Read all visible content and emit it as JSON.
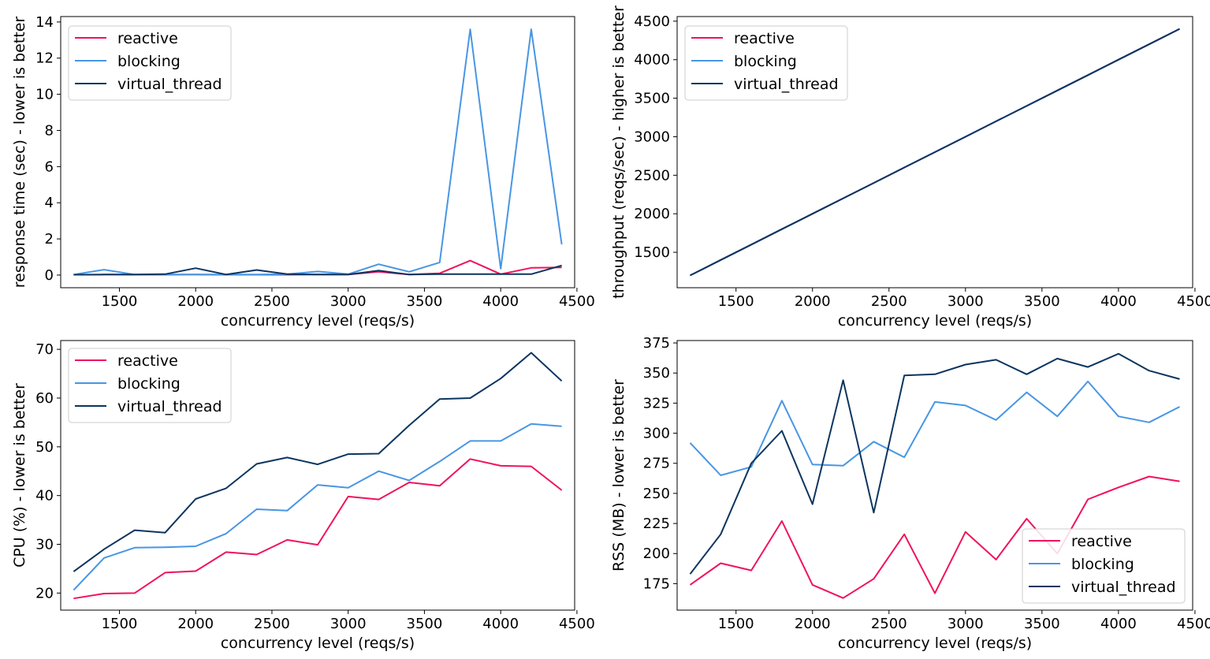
{
  "colors": {
    "reactive": "#f0135a",
    "blocking": "#4896e4",
    "virtual_thread": "#0b3560"
  },
  "chart_data": [
    {
      "type": "line",
      "xlabel": "concurrency level (reqs/s)",
      "ylabel": "response time (sec) - lower is better",
      "xlim": [
        1115,
        4485
      ],
      "ylim": [
        -0.7,
        14.3
      ],
      "xticks": [
        1500,
        2000,
        2500,
        3000,
        3500,
        4000,
        4500
      ],
      "yticks": [
        0,
        2,
        4,
        6,
        8,
        10,
        12,
        14
      ],
      "legend": "upper-left",
      "x": [
        1200,
        1400,
        1600,
        1800,
        2000,
        2200,
        2400,
        2600,
        2800,
        3000,
        3200,
        3400,
        3600,
        3800,
        4000,
        4200,
        4400
      ],
      "series": [
        {
          "name": "reactive",
          "color": "#f0135a",
          "values": [
            0.02,
            0.03,
            0.02,
            0.02,
            0.03,
            0.02,
            0.02,
            0.02,
            0.03,
            0.03,
            0.18,
            0.03,
            0.1,
            0.8,
            0.05,
            0.4,
            0.42
          ]
        },
        {
          "name": "blocking",
          "color": "#4896e4",
          "values": [
            0.03,
            0.3,
            0.03,
            0.03,
            0.03,
            0.03,
            0.03,
            0.05,
            0.2,
            0.05,
            0.6,
            0.18,
            0.7,
            13.6,
            0.35,
            13.6,
            1.7
          ]
        },
        {
          "name": "virtual_thread",
          "color": "#0b3560",
          "values": [
            0.02,
            0.03,
            0.03,
            0.05,
            0.38,
            0.03,
            0.28,
            0.05,
            0.03,
            0.03,
            0.25,
            0.03,
            0.05,
            0.05,
            0.05,
            0.05,
            0.53
          ]
        }
      ]
    },
    {
      "type": "line",
      "xlabel": "concurrency level (reqs/s)",
      "ylabel": "throughput (reqs/sec) - higher is better",
      "xlim": [
        1115,
        4485
      ],
      "ylim": [
        1040,
        4560
      ],
      "xticks": [
        1500,
        2000,
        2500,
        3000,
        3500,
        4000,
        4500
      ],
      "yticks": [
        1500,
        2000,
        2500,
        3000,
        3500,
        4000,
        4500
      ],
      "legend": "upper-left",
      "x": [
        1200,
        1400,
        1600,
        1800,
        2000,
        2200,
        2400,
        2600,
        2800,
        3000,
        3200,
        3400,
        3600,
        3800,
        4000,
        4200,
        4400
      ],
      "series": [
        {
          "name": "reactive",
          "color": "#f0135a",
          "values": [
            1200,
            1400,
            1600,
            1800,
            2000,
            2200,
            2400,
            2600,
            2800,
            3000,
            3200,
            3400,
            3600,
            3800,
            4000,
            4200,
            4400
          ]
        },
        {
          "name": "blocking",
          "color": "#4896e4",
          "values": [
            1200,
            1400,
            1600,
            1800,
            2000,
            2200,
            2400,
            2600,
            2800,
            3000,
            3200,
            3400,
            3600,
            3800,
            4000,
            4200,
            4400
          ]
        },
        {
          "name": "virtual_thread",
          "color": "#0b3560",
          "values": [
            1200,
            1400,
            1600,
            1800,
            2000,
            2200,
            2400,
            2600,
            2800,
            3000,
            3200,
            3400,
            3600,
            3800,
            4000,
            4200,
            4400
          ]
        }
      ]
    },
    {
      "type": "line",
      "xlabel": "concurrency level (reqs/s)",
      "ylabel": "CPU (%) - lower is better",
      "xlim": [
        1115,
        4485
      ],
      "ylim": [
        16.5,
        71.8
      ],
      "xticks": [
        1500,
        2000,
        2500,
        3000,
        3500,
        4000,
        4500
      ],
      "yticks": [
        20,
        30,
        40,
        50,
        60,
        70
      ],
      "legend": "upper-left",
      "x": [
        1200,
        1400,
        1600,
        1800,
        2000,
        2200,
        2400,
        2600,
        2800,
        3000,
        3200,
        3400,
        3600,
        3800,
        4000,
        4200,
        4400
      ],
      "series": [
        {
          "name": "reactive",
          "color": "#f0135a",
          "values": [
            18.9,
            19.9,
            20.0,
            24.2,
            24.5,
            28.4,
            27.9,
            30.9,
            29.9,
            39.8,
            39.2,
            42.7,
            42.0,
            47.5,
            46.1,
            46.0,
            41.1
          ]
        },
        {
          "name": "blocking",
          "color": "#4896e4",
          "values": [
            20.6,
            27.2,
            29.3,
            29.4,
            29.6,
            32.2,
            37.2,
            36.9,
            42.2,
            41.6,
            45.0,
            43.1,
            47.0,
            51.2,
            51.2,
            54.7,
            54.2
          ]
        },
        {
          "name": "virtual_thread",
          "color": "#0b3560",
          "values": [
            24.4,
            29.0,
            32.9,
            32.4,
            39.3,
            41.5,
            46.5,
            47.8,
            46.4,
            48.5,
            48.6,
            54.4,
            59.8,
            60.0,
            64.0,
            69.3,
            63.5
          ]
        }
      ]
    },
    {
      "type": "line",
      "xlabel": "concurrency level (reqs/s)",
      "ylabel": "RSS (MB) - lower is better",
      "xlim": [
        1115,
        4485
      ],
      "ylim": [
        153,
        377
      ],
      "xticks": [
        1500,
        2000,
        2500,
        3000,
        3500,
        4000,
        4500
      ],
      "yticks": [
        175,
        200,
        225,
        250,
        275,
        300,
        325,
        350,
        375
      ],
      "legend": "lower-right",
      "x": [
        1200,
        1400,
        1600,
        1800,
        2000,
        2200,
        2400,
        2600,
        2800,
        3000,
        3200,
        3400,
        3600,
        3800,
        4000,
        4200,
        4400
      ],
      "series": [
        {
          "name": "reactive",
          "color": "#f0135a",
          "values": [
            174,
            192,
            186,
            227,
            174,
            163,
            179,
            216,
            167,
            218,
            195,
            229,
            200,
            245,
            255,
            264,
            260
          ]
        },
        {
          "name": "blocking",
          "color": "#4896e4",
          "values": [
            292,
            265,
            272,
            327,
            274,
            273,
            293,
            280,
            326,
            323,
            311,
            334,
            314,
            343,
            314,
            309,
            322
          ]
        },
        {
          "name": "virtual_thread",
          "color": "#0b3560",
          "values": [
            183,
            216,
            275,
            302,
            241,
            344,
            234,
            348,
            349,
            357,
            361,
            349,
            362,
            355,
            366,
            352,
            345
          ]
        }
      ]
    }
  ]
}
